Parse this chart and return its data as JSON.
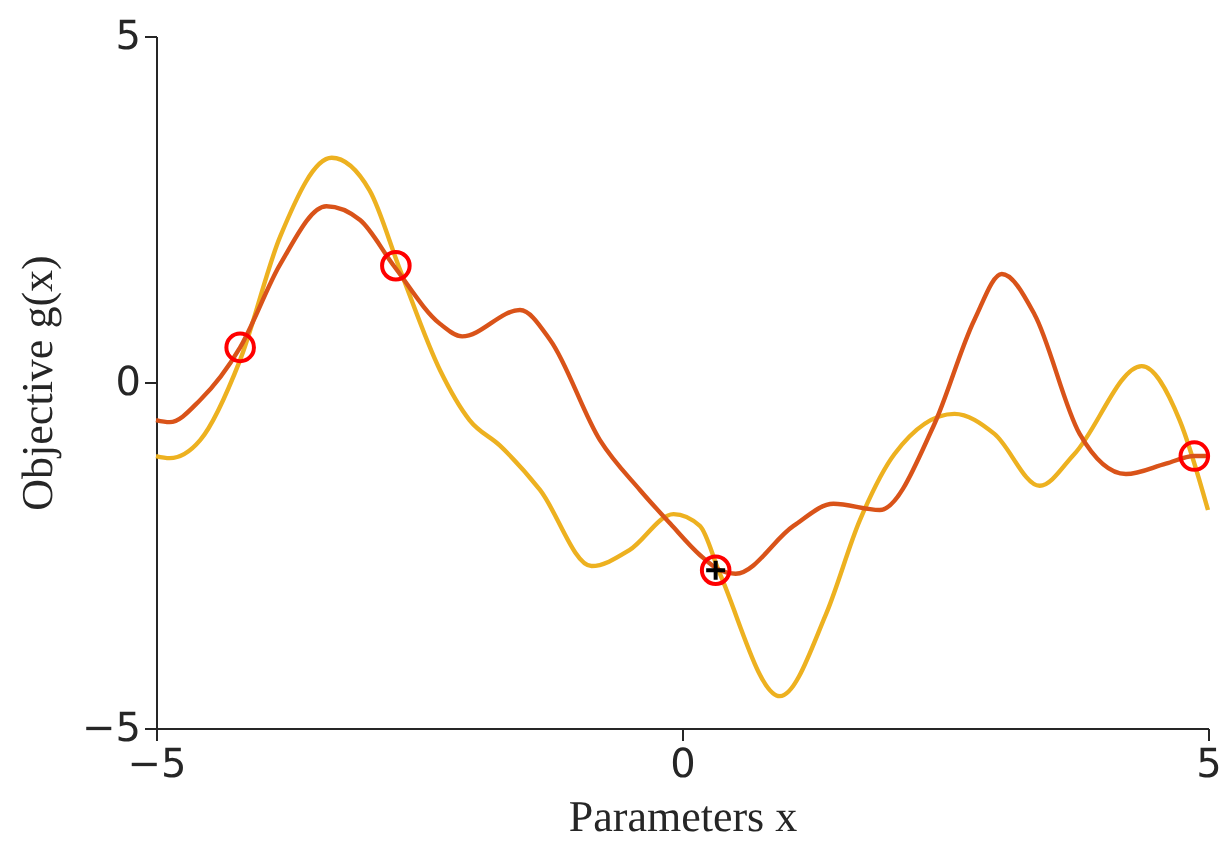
{
  "chart_data": {
    "type": "line",
    "xlabel": "Parameters x",
    "ylabel": "Objective g(x)",
    "xlim": [
      -5,
      5
    ],
    "ylim": [
      -5,
      5
    ],
    "xticks": [
      -5,
      0,
      5
    ],
    "yticks": [
      -5,
      0,
      5
    ],
    "grid": false,
    "series": [
      {
        "color": "#edb120",
        "x": [
          -5,
          -4.87,
          -4.58,
          -4.2,
          -3.82,
          -3.33,
          -2.97,
          -2.68,
          -2.3,
          -2.02,
          -1.73,
          -1.35,
          -0.86,
          -0.5,
          -0.08,
          0.17,
          0.36,
          0.93,
          1.37,
          1.69,
          2.02,
          2.59,
          2.97,
          3.4,
          3.73,
          4.37,
          4.73,
          5
        ],
        "values": [
          -1.07,
          -1.1,
          -0.84,
          0.32,
          2.1,
          3.24,
          2.77,
          1.62,
          0.17,
          -0.55,
          -0.92,
          -1.56,
          -2.66,
          -2.43,
          -1.91,
          -2.08,
          -2.77,
          -4.54,
          -3.35,
          -2.0,
          -1.04,
          -0.46,
          -0.75,
          -1.5,
          -1.04,
          0.23,
          -0.55,
          -1.85
        ]
      },
      {
        "color": "#d95319",
        "x": [
          -5,
          -4.87,
          -4.58,
          -4.2,
          -3.82,
          -3.38,
          -3.06,
          -2.74,
          -2.3,
          -2.09,
          -1.54,
          -1.25,
          -0.78,
          -0.4,
          -0.11,
          0.17,
          0.36,
          0.51,
          1.06,
          1.44,
          1.88,
          2.39,
          2.78,
          3.04,
          3.35,
          3.78,
          4.22,
          4.6,
          4.87,
          5
        ],
        "values": [
          -0.55,
          -0.58,
          -0.26,
          0.5,
          1.7,
          2.54,
          2.34,
          1.68,
          0.84,
          0.66,
          1.04,
          0.6,
          -0.84,
          -1.56,
          -2.05,
          -2.5,
          -2.72,
          -2.77,
          -2.08,
          -1.76,
          -1.85,
          -0.64,
          0.9,
          1.56,
          0.98,
          -0.75,
          -1.33,
          -1.18,
          -1.07,
          -1.07
        ]
      },
      {
        "type": "scatter",
        "marker": "circle",
        "color": "#ff0000",
        "x": [
          -4.2,
          -2.72,
          0.32,
          4.87
        ],
        "values": [
          0.5,
          1.68,
          -2.72,
          -1.07
        ]
      },
      {
        "type": "scatter",
        "marker": "cross",
        "color": "#000000",
        "x": [
          0.32
        ],
        "values": [
          -2.72
        ]
      }
    ]
  }
}
